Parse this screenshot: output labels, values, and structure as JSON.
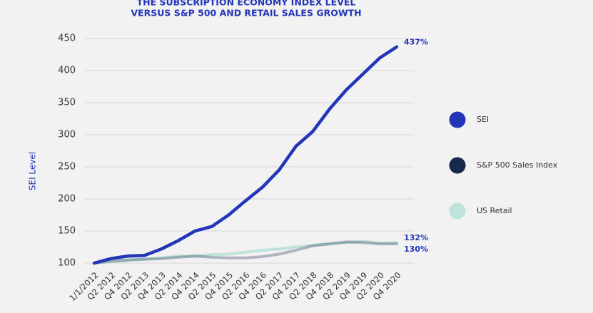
{
  "chart_data": {
    "type": "line",
    "title_lines": [
      "THE SUBSCRIPTION ECONOMY INDEX LEVEL",
      "VERSUS S&P 500 AND RETAIL SALES GROWTH"
    ],
    "y_label": "SEI Level",
    "categories": [
      "1/1/2012",
      "Q2 2012",
      "Q4 2012",
      "Q2 2013",
      "Q4 2013",
      "Q2 2014",
      "Q4 2014",
      "Q2 2015",
      "Q4 2015",
      "Q2 2016",
      "Q4 2016",
      "Q2 2017",
      "Q4 2017",
      "Q2 2018",
      "Q4 2018",
      "Q2 2019",
      "Q4 2019",
      "Q2 2020",
      "Q4 2020"
    ],
    "ylim": [
      100,
      450
    ],
    "yticks": [
      100,
      150,
      200,
      250,
      300,
      350,
      400,
      450
    ],
    "grid": true,
    "legend": "right",
    "series": [
      {
        "name": "SEI",
        "color": "#2335b8",
        "values": [
          100,
          107,
          111,
          112,
          122,
          135,
          150,
          157,
          175,
          197,
          218,
          245,
          282,
          305,
          340,
          370,
          395,
          420,
          437
        ],
        "value_labels": [
          null,
          null,
          null,
          null,
          null,
          null,
          null,
          null,
          null,
          null,
          null,
          null,
          null,
          null,
          null,
          null,
          null,
          null,
          "437%"
        ]
      },
      {
        "name": "S&P 500 Sales Index",
        "color": "#16294a",
        "values": [
          100,
          103,
          105,
          106,
          107,
          109,
          111,
          109,
          108,
          108,
          110,
          114,
          120,
          127,
          130,
          133,
          132,
          130,
          130
        ],
        "value_labels": [
          null,
          null,
          null,
          null,
          null,
          null,
          null,
          null,
          null,
          null,
          null,
          null,
          null,
          null,
          null,
          null,
          null,
          null,
          "130%"
        ]
      },
      {
        "name": "US Retail",
        "color": "#bfe3da",
        "values": [
          100,
          102,
          104,
          106,
          108,
          111,
          111,
          113,
          114,
          117,
          120,
          122,
          125,
          128,
          130,
          132,
          134,
          131,
          132
        ],
        "value_labels": [
          null,
          null,
          null,
          null,
          null,
          null,
          null,
          null,
          null,
          null,
          null,
          null,
          null,
          null,
          null,
          null,
          null,
          null,
          "132%"
        ]
      }
    ]
  }
}
